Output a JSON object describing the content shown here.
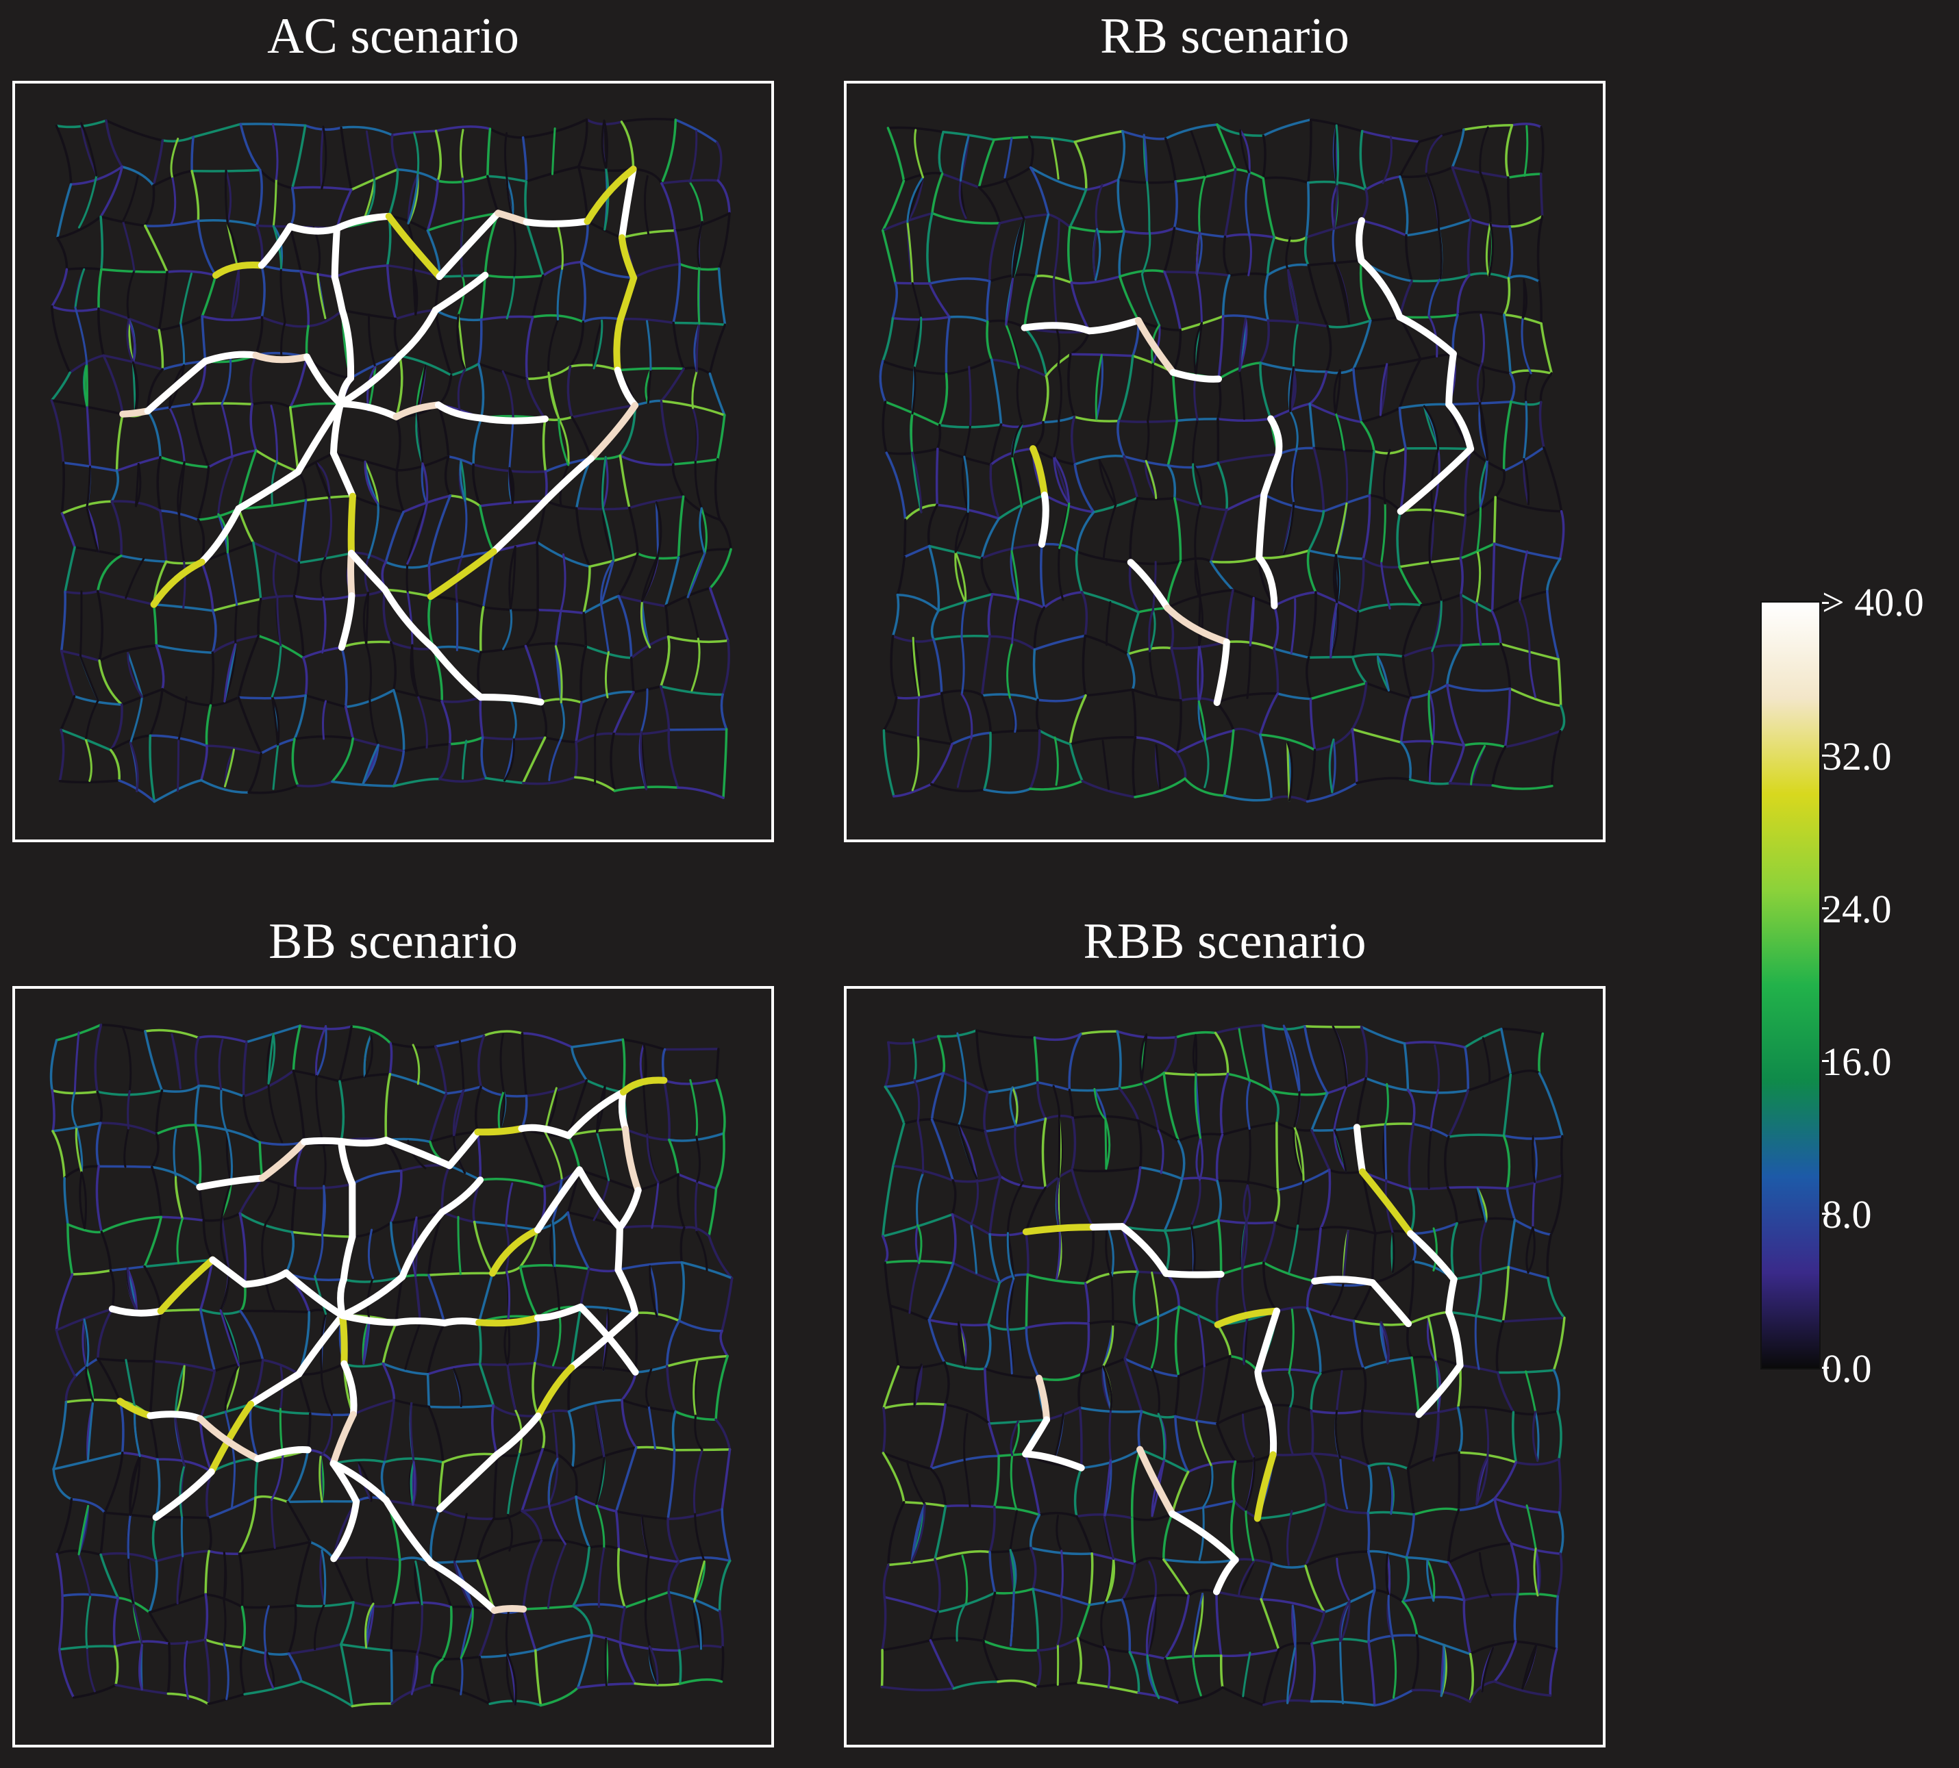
{
  "panels": [
    {
      "id": "ac",
      "title": "AC scenario"
    },
    {
      "id": "rb",
      "title": "RB scenario"
    },
    {
      "id": "bb",
      "title": "BB scenario"
    },
    {
      "id": "rbb",
      "title": "RBB scenario"
    }
  ],
  "colorbar": {
    "labels": [
      "> 40.0",
      "32.0",
      "24.0",
      "16.0",
      "8.0",
      "0.0"
    ],
    "ticks": [
      40,
      32,
      24,
      16,
      8,
      0
    ],
    "min": 0,
    "max": 40,
    "colormap": [
      "#0a0a0a",
      "#3a2a8a",
      "#1d5aa8",
      "#0f8a4a",
      "#22b24a",
      "#8cd23a",
      "#d8d81e",
      "#f3e6c8",
      "#ffffff"
    ]
  },
  "colors": {
    "background": "#1f1d1d",
    "frame": "#ffffff"
  }
}
